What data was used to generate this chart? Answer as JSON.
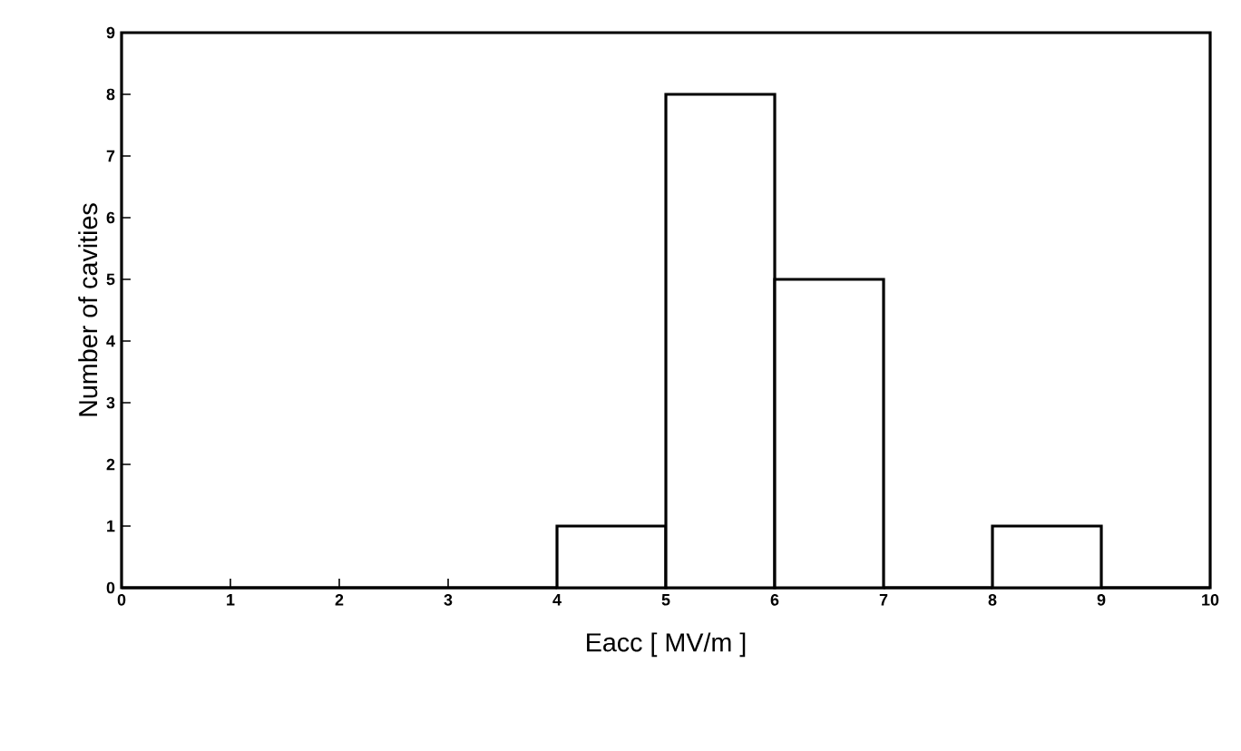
{
  "chart_data": {
    "type": "histogram",
    "xlabel": "Eacc [ MV/m ]",
    "ylabel": "Number of cavities",
    "bins": [
      0,
      1,
      2,
      3,
      4,
      5,
      6,
      7,
      8,
      9,
      10
    ],
    "values": [
      0,
      0,
      0,
      0,
      1,
      8,
      5,
      0,
      1,
      0
    ],
    "xlim": [
      0,
      10
    ],
    "ylim": [
      0,
      9
    ],
    "xticks": [
      0,
      1,
      2,
      3,
      4,
      5,
      6,
      7,
      8,
      9,
      10
    ],
    "yticks": [
      0,
      1,
      2,
      3,
      4,
      5,
      6,
      7,
      8,
      9
    ]
  }
}
